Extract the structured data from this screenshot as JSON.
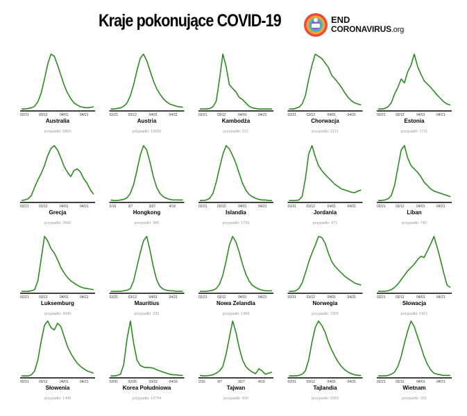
{
  "header": {
    "title": "Kraje pokonujące COVID-19",
    "logo_line1": "END",
    "logo_line2": "CORONAVIRUS",
    "logo_suffix": ".org"
  },
  "colors": {
    "line": "#2a8a1f",
    "axis": "#000000",
    "caption": "#9a9a9a"
  },
  "case_label": "przypadki:",
  "chart_data": [
    {
      "type": "line",
      "name": "Australia",
      "cases": "6860",
      "ticks": [
        "02/21",
        "03/12",
        "04/01",
        "04/21"
      ],
      "values": [
        1,
        1,
        2,
        3,
        6,
        14,
        30,
        55,
        82,
        100,
        96,
        80,
        62,
        44,
        30,
        20,
        12,
        8,
        5,
        4,
        3,
        4,
        5
      ]
    },
    {
      "type": "line",
      "name": "Austria",
      "cases": "15650",
      "ticks": [
        "02/21",
        "03/12",
        "04/01",
        "04/21"
      ],
      "values": [
        1,
        1,
        2,
        3,
        6,
        12,
        25,
        45,
        70,
        92,
        100,
        88,
        70,
        52,
        38,
        28,
        20,
        14,
        10,
        8,
        6,
        5,
        4
      ]
    },
    {
      "type": "line",
      "name": "Kambodża",
      "cases": "121",
      "ticks": [
        "02/21",
        "03/12",
        "04/01",
        "04/21"
      ],
      "values": [
        1,
        1,
        1,
        2,
        5,
        15,
        55,
        100,
        78,
        45,
        38,
        32,
        22,
        18,
        12,
        6,
        3,
        2,
        1,
        1,
        1,
        1,
        1
      ]
    },
    {
      "type": "line",
      "name": "Chorwacja",
      "cases": "2112",
      "ticks": [
        "02/21",
        "03/12",
        "04/01",
        "04/21"
      ],
      "values": [
        1,
        1,
        2,
        4,
        10,
        25,
        55,
        80,
        100,
        96,
        92,
        84,
        76,
        62,
        55,
        48,
        40,
        30,
        22,
        16,
        12,
        10,
        8
      ]
    },
    {
      "type": "line",
      "name": "Estonia",
      "cases": "1711",
      "ticks": [
        "02/21",
        "03/12",
        "04/01",
        "04/21"
      ],
      "values": [
        1,
        1,
        2,
        5,
        12,
        28,
        40,
        55,
        48,
        68,
        80,
        100,
        78,
        64,
        52,
        46,
        40,
        33,
        26,
        20,
        14,
        10,
        8
      ]
    },
    {
      "type": "line",
      "name": "Grecja",
      "cases": "2642",
      "ticks": [
        "02/21",
        "03/12",
        "04/01",
        "04/21"
      ],
      "values": [
        1,
        2,
        4,
        10,
        25,
        38,
        50,
        64,
        82,
        95,
        100,
        92,
        78,
        62,
        52,
        44,
        55,
        58,
        52,
        40,
        32,
        20,
        12
      ]
    },
    {
      "type": "line",
      "name": "Hongkong",
      "cases": "985",
      "ticks": [
        "2/16",
        "3/7",
        "3/27",
        "4/16"
      ],
      "values": [
        2,
        1,
        1,
        2,
        3,
        6,
        14,
        30,
        55,
        82,
        100,
        92,
        70,
        44,
        25,
        14,
        8,
        5,
        3,
        2,
        2,
        2,
        2
      ]
    },
    {
      "type": "line",
      "name": "Islandia",
      "cases": "1799",
      "ticks": [
        "02/21",
        "03/12",
        "04/01",
        "04/21"
      ],
      "values": [
        1,
        1,
        2,
        5,
        14,
        34,
        60,
        84,
        100,
        94,
        82,
        68,
        50,
        32,
        20,
        12,
        8,
        5,
        3,
        2,
        2,
        1,
        1
      ]
    },
    {
      "type": "line",
      "name": "Jordania",
      "cases": "471",
      "ticks": [
        "02/21",
        "03/12",
        "04/01",
        "04/21"
      ],
      "values": [
        1,
        1,
        1,
        2,
        8,
        40,
        85,
        100,
        80,
        64,
        55,
        48,
        42,
        36,
        30,
        26,
        22,
        20,
        18,
        16,
        15,
        18,
        20
      ]
    },
    {
      "type": "line",
      "name": "Liban",
      "cases": "740",
      "ticks": [
        "02/21",
        "03/12",
        "04/01",
        "04/21"
      ],
      "values": [
        1,
        1,
        2,
        4,
        10,
        28,
        60,
        92,
        100,
        78,
        64,
        58,
        52,
        44,
        34,
        28,
        22,
        18,
        16,
        14,
        12,
        10,
        8
      ]
    },
    {
      "type": "line",
      "name": "Luksemburg",
      "cases": "3040",
      "ticks": [
        "02/21",
        "03/12",
        "04/01",
        "04/21"
      ],
      "values": [
        1,
        1,
        1,
        2,
        4,
        20,
        60,
        100,
        92,
        78,
        70,
        58,
        44,
        34,
        26,
        20,
        16,
        12,
        9,
        7,
        6,
        5,
        4
      ]
    },
    {
      "type": "line",
      "name": "Mauritius",
      "cases": "332",
      "ticks": [
        "02/21",
        "03/12",
        "04/01",
        "04/21"
      ],
      "values": [
        1,
        1,
        1,
        1,
        2,
        3,
        6,
        20,
        45,
        70,
        92,
        100,
        75,
        45,
        22,
        10,
        5,
        3,
        2,
        2,
        1,
        1,
        1
      ]
    },
    {
      "type": "line",
      "name": "Nowa Zelandia",
      "cases": "1488",
      "ticks": [
        "02/21",
        "03/12",
        "04/01",
        "04/21"
      ],
      "values": [
        1,
        1,
        1,
        2,
        3,
        6,
        14,
        30,
        55,
        84,
        100,
        90,
        72,
        50,
        32,
        20,
        12,
        8,
        5,
        3,
        2,
        2,
        2
      ]
    },
    {
      "type": "line",
      "name": "Norwegia",
      "cases": "7955",
      "ticks": [
        "02/21",
        "03/12",
        "04/01",
        "04/21"
      ],
      "values": [
        1,
        1,
        2,
        6,
        16,
        34,
        54,
        70,
        84,
        100,
        98,
        88,
        70,
        55,
        46,
        40,
        34,
        28,
        24,
        20,
        16,
        14,
        12
      ]
    },
    {
      "type": "line",
      "name": "Słowacja",
      "cases": "1421",
      "ticks": [
        "02/21",
        "03/12",
        "04/01",
        "04/21"
      ],
      "values": [
        1,
        1,
        1,
        2,
        4,
        8,
        14,
        22,
        30,
        38,
        44,
        50,
        58,
        64,
        62,
        74,
        86,
        100,
        80,
        58,
        34,
        12,
        8
      ]
    },
    {
      "type": "line",
      "name": "Słowenia",
      "cases": "1445",
      "ticks": [
        "02/21",
        "03/12",
        "04/01",
        "04/21"
      ],
      "values": [
        1,
        1,
        1,
        3,
        10,
        30,
        64,
        92,
        100,
        88,
        84,
        96,
        90,
        72,
        54,
        42,
        32,
        24,
        18,
        14,
        10,
        8,
        6
      ]
    },
    {
      "type": "line",
      "name": "Korea Południowa",
      "cases": "10794",
      "ticks": [
        "02/01",
        "02/26",
        "03/22",
        "04/16"
      ],
      "values": [
        1,
        1,
        2,
        4,
        22,
        68,
        100,
        60,
        30,
        20,
        17,
        16,
        16,
        15,
        12,
        10,
        8,
        6,
        4,
        3,
        3,
        2,
        2
      ]
    },
    {
      "type": "line",
      "name": "Tajwan",
      "cases": "420",
      "ticks": [
        "2/16",
        "3/7",
        "3/27",
        "4/16"
      ],
      "values": [
        2,
        1,
        1,
        2,
        3,
        6,
        10,
        18,
        40,
        70,
        100,
        80,
        52,
        30,
        18,
        12,
        8,
        5,
        14,
        10,
        4,
        6,
        8
      ]
    },
    {
      "type": "line",
      "name": "Tajlandia",
      "cases": "2953",
      "ticks": [
        "02/21",
        "03/12",
        "04/01",
        "04/21"
      ],
      "values": [
        1,
        1,
        1,
        2,
        4,
        10,
        30,
        62,
        88,
        100,
        92,
        80,
        62,
        48,
        36,
        26,
        18,
        12,
        8,
        5,
        3,
        2,
        2
      ]
    },
    {
      "type": "line",
      "name": "Wietnam",
      "cases": "255",
      "ticks": [
        "02/21",
        "03/12",
        "04/01",
        "04/21"
      ],
      "values": [
        1,
        1,
        1,
        2,
        4,
        8,
        18,
        36,
        60,
        82,
        100,
        90,
        72,
        54,
        36,
        22,
        12,
        6,
        4,
        3,
        2,
        2,
        2
      ]
    }
  ]
}
